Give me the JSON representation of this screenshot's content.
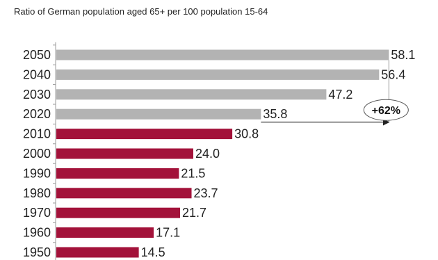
{
  "chart_data": {
    "type": "bar",
    "orientation": "horizontal",
    "title": "Ratio of German population aged 65+ per 100 population 15-64",
    "xlabel": "",
    "ylabel": "",
    "xlim": [
      0,
      60
    ],
    "grid": false,
    "categories": [
      "2050",
      "2040",
      "2030",
      "2020",
      "2010",
      "2000",
      "1990",
      "1980",
      "1970",
      "1960",
      "1950"
    ],
    "values": [
      58.1,
      56.4,
      47.2,
      35.8,
      30.8,
      24.0,
      21.5,
      23.7,
      21.7,
      17.1,
      14.5
    ],
    "value_labels": [
      "58.1",
      "56.4",
      "47.2",
      "35.8",
      "30.8",
      "24.0",
      "21.5",
      "23.7",
      "21.7",
      "17.1",
      "14.5"
    ],
    "bar_kind": [
      "projection",
      "projection",
      "projection",
      "projection",
      "actual",
      "actual",
      "actual",
      "actual",
      "actual",
      "actual",
      "actual"
    ],
    "colors": {
      "projection": "#b3b3b3",
      "actual": "#a3123a",
      "axis": "#999999",
      "annotation": "#222222"
    },
    "annotation": {
      "text": "+62%",
      "from_category": "2020",
      "to_category": "2050"
    }
  }
}
